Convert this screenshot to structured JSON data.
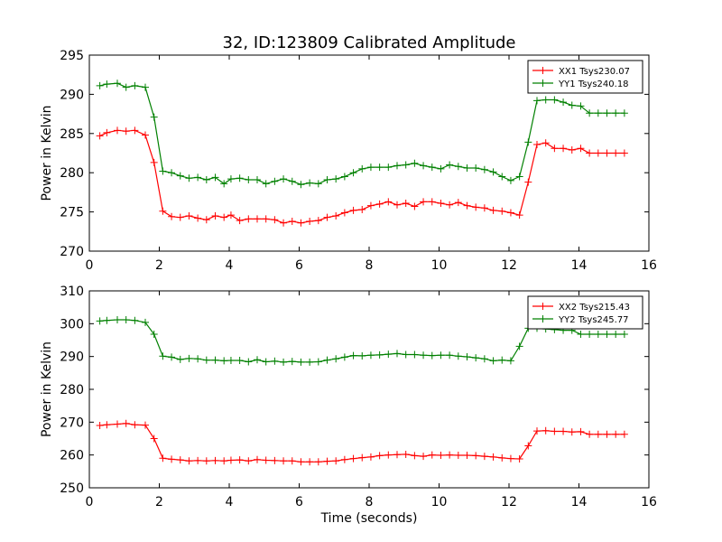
{
  "figure": {
    "title": "32, ID:123809 Calibrated Amplitude"
  },
  "colors": {
    "xx": "#ff0000",
    "yy": "#008000"
  },
  "chart_data": [
    {
      "type": "line",
      "title": "32, ID:123809 Calibrated Amplitude",
      "xlabel": "",
      "ylabel": "Power in Kelvin",
      "xlim": [
        0,
        16
      ],
      "ylim": [
        270,
        295
      ],
      "xticks": [
        0,
        2,
        4,
        6,
        8,
        10,
        12,
        14,
        16
      ],
      "yticks": [
        270,
        275,
        280,
        285,
        290,
        295
      ],
      "grid": false,
      "legend_position": "top-right",
      "x": [
        0.3,
        0.5,
        0.8,
        1.05,
        1.3,
        1.6,
        1.85,
        2.1,
        2.35,
        2.6,
        2.85,
        3.1,
        3.35,
        3.6,
        3.85,
        4.05,
        4.3,
        4.55,
        4.8,
        5.05,
        5.3,
        5.55,
        5.8,
        6.05,
        6.3,
        6.55,
        6.8,
        7.05,
        7.3,
        7.55,
        7.8,
        8.05,
        8.3,
        8.55,
        8.8,
        9.05,
        9.3,
        9.55,
        9.8,
        10.05,
        10.3,
        10.55,
        10.8,
        11.05,
        11.3,
        11.55,
        11.8,
        12.05,
        12.3,
        12.55,
        12.8,
        13.05,
        13.3,
        13.55,
        13.8,
        14.05,
        14.3,
        14.55,
        14.8,
        15.05,
        15.3
      ],
      "series": [
        {
          "name": "XX1 Tsys230.07",
          "color": "#ff0000",
          "values": [
            284.7,
            285.1,
            285.4,
            285.3,
            285.4,
            284.8,
            281.3,
            275.1,
            274.4,
            274.3,
            274.5,
            274.2,
            274.0,
            274.5,
            274.3,
            274.6,
            273.9,
            274.1,
            274.1,
            274.1,
            274.0,
            273.6,
            273.8,
            273.6,
            273.8,
            273.9,
            274.3,
            274.5,
            274.9,
            275.2,
            275.3,
            275.8,
            276.0,
            276.3,
            275.9,
            276.1,
            275.7,
            276.3,
            276.3,
            276.1,
            275.9,
            276.2,
            275.8,
            275.6,
            275.5,
            275.2,
            275.1,
            274.9,
            274.6,
            278.8,
            283.6,
            283.8,
            283.1,
            283.1,
            282.9,
            283.1,
            282.5,
            282.5,
            282.5,
            282.5,
            282.5
          ]
        },
        {
          "name": "YY1 Tsys240.18",
          "color": "#008000",
          "values": [
            291.1,
            291.3,
            291.4,
            290.9,
            291.1,
            290.9,
            287.1,
            280.2,
            280.0,
            279.6,
            279.3,
            279.4,
            279.1,
            279.4,
            278.6,
            279.2,
            279.3,
            279.1,
            279.1,
            278.6,
            278.9,
            279.2,
            278.9,
            278.5,
            278.7,
            278.6,
            279.1,
            279.2,
            279.5,
            280.0,
            280.5,
            280.7,
            280.7,
            280.7,
            280.9,
            281.0,
            281.2,
            280.9,
            280.7,
            280.5,
            281.0,
            280.8,
            280.6,
            280.6,
            280.4,
            280.1,
            279.5,
            279.0,
            279.5,
            283.9,
            289.2,
            289.3,
            289.3,
            289.0,
            288.6,
            288.5,
            287.6,
            287.6,
            287.6,
            287.6,
            287.6
          ]
        }
      ]
    },
    {
      "type": "line",
      "title": "",
      "xlabel": "Time (seconds)",
      "ylabel": "Power in Kelvin",
      "xlim": [
        0,
        16
      ],
      "ylim": [
        250,
        310
      ],
      "xticks": [
        0,
        2,
        4,
        6,
        8,
        10,
        12,
        14,
        16
      ],
      "yticks": [
        250,
        260,
        270,
        280,
        290,
        300,
        310
      ],
      "grid": false,
      "legend_position": "top-right",
      "x": [
        0.3,
        0.5,
        0.8,
        1.05,
        1.3,
        1.6,
        1.85,
        2.1,
        2.35,
        2.6,
        2.85,
        3.1,
        3.35,
        3.6,
        3.85,
        4.05,
        4.3,
        4.55,
        4.8,
        5.05,
        5.3,
        5.55,
        5.8,
        6.05,
        6.3,
        6.55,
        6.8,
        7.05,
        7.3,
        7.55,
        7.8,
        8.05,
        8.3,
        8.55,
        8.8,
        9.05,
        9.3,
        9.55,
        9.8,
        10.05,
        10.3,
        10.55,
        10.8,
        11.05,
        11.3,
        11.55,
        11.8,
        12.05,
        12.3,
        12.55,
        12.8,
        13.05,
        13.3,
        13.55,
        13.8,
        14.05,
        14.3,
        14.55,
        14.8,
        15.05,
        15.3
      ],
      "series": [
        {
          "name": "XX2 Tsys215.43",
          "color": "#ff0000",
          "values": [
            269.0,
            269.2,
            269.4,
            269.6,
            269.2,
            269.1,
            265.0,
            259.0,
            258.7,
            258.5,
            258.2,
            258.3,
            258.2,
            258.3,
            258.2,
            258.4,
            258.5,
            258.2,
            258.6,
            258.4,
            258.3,
            258.2,
            258.2,
            257.9,
            257.9,
            257.9,
            258.1,
            258.2,
            258.6,
            258.9,
            259.2,
            259.4,
            259.8,
            260.0,
            260.1,
            260.2,
            259.8,
            259.6,
            260.0,
            259.9,
            260.0,
            259.9,
            259.9,
            259.8,
            259.6,
            259.4,
            259.1,
            258.9,
            258.8,
            262.8,
            267.3,
            267.4,
            267.2,
            267.2,
            267.0,
            267.1,
            266.3,
            266.3,
            266.3,
            266.3,
            266.3
          ]
        },
        {
          "name": "YY2 Tsys245.77",
          "color": "#008000",
          "values": [
            300.8,
            301.0,
            301.2,
            301.2,
            301.0,
            300.4,
            296.8,
            290.1,
            289.8,
            289.1,
            289.4,
            289.3,
            288.9,
            288.9,
            288.7,
            288.8,
            288.8,
            288.4,
            289.0,
            288.4,
            288.6,
            288.3,
            288.5,
            288.3,
            288.3,
            288.4,
            288.9,
            289.3,
            289.8,
            290.3,
            290.2,
            290.4,
            290.5,
            290.7,
            290.9,
            290.6,
            290.6,
            290.4,
            290.3,
            290.4,
            290.4,
            290.1,
            289.9,
            289.6,
            289.3,
            288.7,
            288.9,
            288.7,
            293.1,
            298.6,
            298.6,
            298.4,
            298.2,
            298.0,
            298.0,
            296.8,
            296.8,
            296.8,
            296.8,
            296.8,
            296.8
          ]
        }
      ]
    }
  ]
}
